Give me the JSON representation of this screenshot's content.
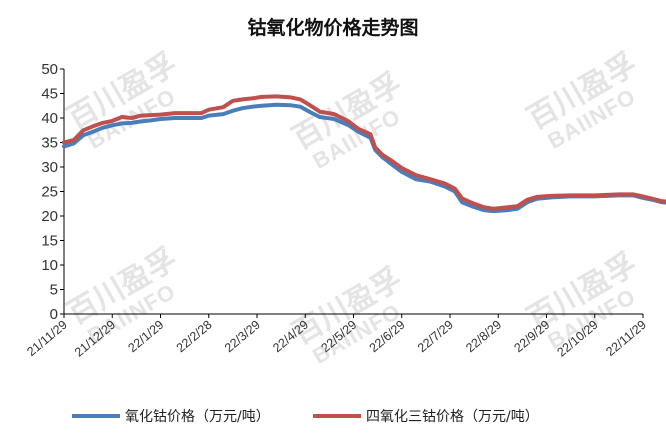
{
  "watermark": {
    "cn": "百川盈孚",
    "en": "BAIINFO"
  },
  "chart_data": {
    "type": "line",
    "title": "钴氧化物价格走势图",
    "xlabel": "",
    "ylabel": "",
    "ylim": [
      0,
      50
    ],
    "yticks": [
      0,
      5,
      10,
      15,
      20,
      25,
      30,
      35,
      40,
      45,
      50
    ],
    "x_tick_labels": [
      "21/11/29",
      "21/12/29",
      "22/1/29",
      "22/2/28",
      "22/3/29",
      "22/4/29",
      "22/5/29",
      "22/6/29",
      "22/7/29",
      "22/8/29",
      "22/9/29",
      "22/10/29",
      "22/11/29"
    ],
    "grid": false,
    "legend_position": "bottom",
    "series": [
      {
        "name": "氧化钴价格（万元/吨）",
        "color": "#4a7ebb",
        "points": [
          [
            0,
            34.2
          ],
          [
            0.2,
            34.8
          ],
          [
            0.4,
            36.5
          ],
          [
            0.6,
            37.2
          ],
          [
            0.8,
            38.0
          ],
          [
            1.0,
            38.5
          ],
          [
            1.2,
            38.9
          ],
          [
            1.4,
            39.0
          ],
          [
            1.6,
            39.3
          ],
          [
            1.8,
            39.5
          ],
          [
            2.0,
            39.8
          ],
          [
            2.3,
            40.0
          ],
          [
            2.6,
            40.0
          ],
          [
            2.85,
            40.0
          ],
          [
            3.0,
            40.5
          ],
          [
            3.3,
            40.8
          ],
          [
            3.5,
            41.5
          ],
          [
            3.7,
            42.0
          ],
          [
            3.9,
            42.3
          ],
          [
            4.1,
            42.5
          ],
          [
            4.4,
            42.7
          ],
          [
            4.7,
            42.6
          ],
          [
            4.9,
            42.3
          ],
          [
            5.1,
            41.2
          ],
          [
            5.3,
            40.2
          ],
          [
            5.6,
            39.8
          ],
          [
            5.9,
            38.5
          ],
          [
            6.1,
            37.2
          ],
          [
            6.35,
            36.0
          ],
          [
            6.45,
            33.5
          ],
          [
            6.6,
            32.0
          ],
          [
            6.8,
            30.5
          ],
          [
            7.0,
            29.0
          ],
          [
            7.3,
            27.5
          ],
          [
            7.6,
            27.0
          ],
          [
            7.9,
            26.0
          ],
          [
            8.1,
            25.0
          ],
          [
            8.25,
            22.8
          ],
          [
            8.45,
            22.0
          ],
          [
            8.7,
            21.2
          ],
          [
            8.9,
            21.0
          ],
          [
            9.2,
            21.2
          ],
          [
            9.4,
            21.5
          ],
          [
            9.6,
            22.8
          ],
          [
            9.8,
            23.5
          ],
          [
            10.1,
            23.8
          ],
          [
            10.5,
            24.0
          ],
          [
            11.0,
            24.0
          ],
          [
            11.5,
            24.2
          ],
          [
            11.8,
            24.2
          ],
          [
            12.0,
            23.7
          ],
          [
            12.2,
            23.3
          ],
          [
            12.4,
            22.8
          ],
          [
            12.7,
            22.6
          ],
          [
            13.0,
            22.5
          ]
        ]
      },
      {
        "name": "四氧化三钴价格（万元/吨）",
        "color": "#c0504d",
        "points": [
          [
            0,
            35.0
          ],
          [
            0.2,
            35.5
          ],
          [
            0.4,
            37.5
          ],
          [
            0.6,
            38.3
          ],
          [
            0.8,
            39.0
          ],
          [
            1.0,
            39.4
          ],
          [
            1.2,
            40.2
          ],
          [
            1.4,
            40.0
          ],
          [
            1.6,
            40.5
          ],
          [
            1.8,
            40.6
          ],
          [
            2.0,
            40.7
          ],
          [
            2.3,
            41.0
          ],
          [
            2.6,
            41.0
          ],
          [
            2.85,
            41.0
          ],
          [
            3.0,
            41.7
          ],
          [
            3.3,
            42.2
          ],
          [
            3.5,
            43.5
          ],
          [
            3.7,
            43.8
          ],
          [
            3.9,
            44.0
          ],
          [
            4.1,
            44.3
          ],
          [
            4.4,
            44.4
          ],
          [
            4.7,
            44.2
          ],
          [
            4.9,
            43.8
          ],
          [
            5.1,
            42.6
          ],
          [
            5.3,
            41.3
          ],
          [
            5.6,
            40.8
          ],
          [
            5.9,
            39.3
          ],
          [
            6.1,
            37.8
          ],
          [
            6.35,
            36.7
          ],
          [
            6.45,
            34.0
          ],
          [
            6.6,
            32.5
          ],
          [
            6.8,
            31.2
          ],
          [
            7.0,
            29.8
          ],
          [
            7.3,
            28.3
          ],
          [
            7.6,
            27.5
          ],
          [
            7.9,
            26.6
          ],
          [
            8.1,
            25.6
          ],
          [
            8.25,
            23.6
          ],
          [
            8.45,
            22.7
          ],
          [
            8.7,
            21.8
          ],
          [
            8.9,
            21.5
          ],
          [
            9.2,
            21.8
          ],
          [
            9.4,
            22.0
          ],
          [
            9.6,
            23.3
          ],
          [
            9.8,
            23.9
          ],
          [
            10.1,
            24.1
          ],
          [
            10.5,
            24.2
          ],
          [
            11.0,
            24.2
          ],
          [
            11.5,
            24.4
          ],
          [
            11.8,
            24.4
          ],
          [
            12.0,
            24.0
          ],
          [
            12.2,
            23.5
          ],
          [
            12.4,
            23.0
          ],
          [
            12.7,
            22.8
          ],
          [
            13.0,
            22.6
          ]
        ]
      }
    ]
  }
}
